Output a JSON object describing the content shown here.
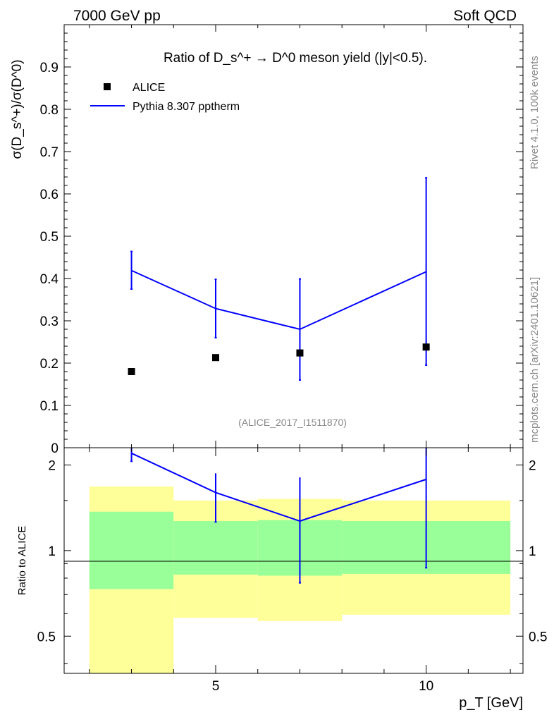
{
  "header": {
    "energy_label": "7000 GeV pp",
    "category_label": "Soft QCD"
  },
  "side_labels": {
    "rivet": "Rivet 4.1.0,  100k events",
    "mcplots": "mcplots.cern.ch [arXiv:2401.10621]"
  },
  "analysis_id": "(ALICE_2017_I1511870)",
  "colors": {
    "pythia": "#0000ff",
    "band_1sigma": "#99ff99",
    "band_2sigma": "#ffff99",
    "data_marker": "#000000"
  },
  "chart_data": [
    {
      "panel": "main",
      "type": "scatter",
      "title": "Ratio of D_s^+ → D^0 meson yield (|y|<0.5).",
      "ylabel": "σ(D_s^+)/σ(D^0)",
      "ylim": [
        0,
        1.0
      ],
      "xlim": [
        1.4,
        12.3
      ],
      "yticks": [
        0,
        0.1,
        0.2,
        0.3,
        0.4,
        0.5,
        0.6,
        0.7,
        0.8,
        0.9
      ],
      "ytick_labels": [
        "0",
        "0.1",
        "0.2",
        "0.3",
        "0.4",
        "0.5",
        "0.6",
        "0.7",
        "0.8",
        "0.9"
      ],
      "legend_position": "top-left",
      "series": [
        {
          "name": "ALICE",
          "kind": "markers",
          "x": [
            3,
            5,
            7,
            10
          ],
          "y": [
            0.18,
            0.213,
            0.224,
            0.238
          ]
        },
        {
          "name": "Pythia 8.307 pptherm",
          "kind": "line-with-errors",
          "x": [
            3,
            5,
            7,
            10
          ],
          "y": [
            0.419,
            0.329,
            0.28,
            0.416
          ],
          "yerr_low": [
            0.375,
            0.26,
            0.16,
            0.195
          ],
          "yerr_high": [
            0.464,
            0.398,
            0.399,
            0.638
          ]
        }
      ]
    },
    {
      "panel": "ratio",
      "type": "line",
      "ylabel": "Ratio to ALICE",
      "xlabel": "p_T [GeV]",
      "ylim": [
        0.37,
        2.3
      ],
      "yscale": "log",
      "xlim": [
        1.4,
        12.3
      ],
      "yticks": [
        0.5,
        1,
        2
      ],
      "ytick_labels": [
        "0.5",
        "1",
        "2"
      ],
      "xticks": [
        5,
        10
      ],
      "xtick_labels": [
        "5",
        "10"
      ],
      "bins": [
        {
          "x_low": 2,
          "x_high": 4,
          "band1": [
            0.732,
            1.37
          ],
          "band2": [
            0.37,
            1.68
          ]
        },
        {
          "x_low": 4,
          "x_high": 6,
          "band1": [
            0.823,
            1.27
          ],
          "band2": [
            0.58,
            1.5
          ]
        },
        {
          "x_low": 6,
          "x_high": 8,
          "band1": [
            0.816,
            1.28
          ],
          "band2": [
            0.565,
            1.52
          ]
        },
        {
          "x_low": 8,
          "x_high": 12,
          "band1": [
            0.828,
            1.27
          ],
          "band2": [
            0.595,
            1.5
          ]
        }
      ],
      "series": [
        {
          "name": "Pythia 8.307 pptherm",
          "x": [
            3,
            5,
            7,
            10
          ],
          "y": [
            2.2,
            1.6,
            1.27,
            1.78
          ],
          "yerr_low": [
            2.06,
            1.26,
            0.77,
            0.87
          ],
          "yerr_high": [
            2.3,
            1.87,
            1.81,
            2.3
          ]
        }
      ]
    }
  ]
}
